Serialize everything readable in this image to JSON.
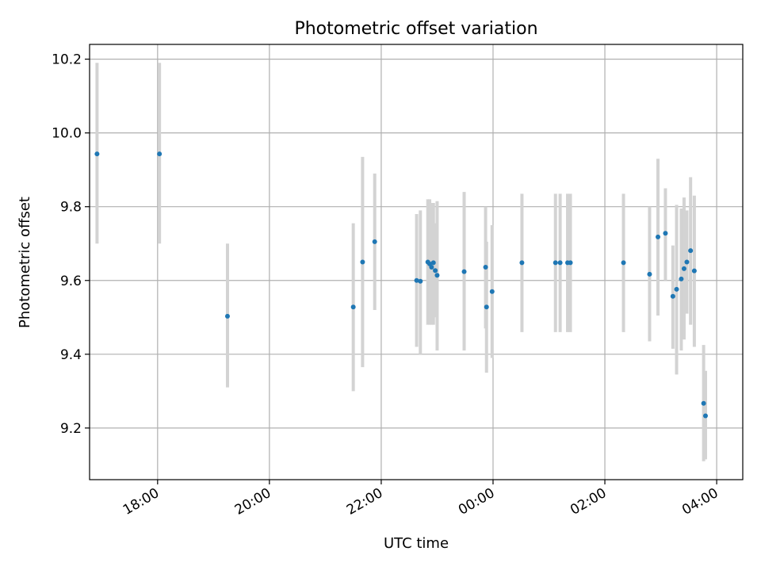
{
  "chart_data": {
    "type": "scatter",
    "title": "Photometric offset variation",
    "xlabel": "UTC time",
    "ylabel": "Photometric offset",
    "grid": true,
    "x_axis_type": "time",
    "x_ticks": [
      "18:00",
      "20:00",
      "22:00",
      "00:00",
      "02:00",
      "04:00"
    ],
    "y_ticks": [
      "9.2",
      "9.4",
      "9.6",
      "9.8",
      "10.0",
      "10.2"
    ],
    "xlim": [
      "16:47",
      "04:28"
    ],
    "ylim": [
      9.06,
      10.24
    ],
    "colors": {
      "points": "#1f77b4",
      "errorbars": "#d3d3d3",
      "grid": "#b0b0b0"
    },
    "series": [
      {
        "points": [
          {
            "x": "16:55",
            "y": 9.943,
            "ylo": 9.7,
            "yhi": 10.19
          },
          {
            "x": "18:02",
            "y": 9.943,
            "ylo": 9.7,
            "yhi": 10.19
          },
          {
            "x": "19:15",
            "y": 9.503,
            "ylo": 9.31,
            "yhi": 9.7
          },
          {
            "x": "21:30",
            "y": 9.528,
            "ylo": 9.3,
            "yhi": 9.755
          },
          {
            "x": "21:40",
            "y": 9.65,
            "ylo": 9.365,
            "yhi": 9.935
          },
          {
            "x": "21:53",
            "y": 9.705,
            "ylo": 9.52,
            "yhi": 9.89
          },
          {
            "x": "22:38",
            "y": 9.6,
            "ylo": 9.42,
            "yhi": 9.78
          },
          {
            "x": "22:42",
            "y": 9.598,
            "ylo": 9.4,
            "yhi": 9.79
          },
          {
            "x": "22:50",
            "y": 9.65,
            "ylo": 9.48,
            "yhi": 9.82
          },
          {
            "x": "22:52",
            "y": 9.645,
            "ylo": 9.48,
            "yhi": 9.82
          },
          {
            "x": "22:54",
            "y": 9.636,
            "ylo": 9.48,
            "yhi": 9.81
          },
          {
            "x": "22:56",
            "y": 9.648,
            "ylo": 9.48,
            "yhi": 9.81
          },
          {
            "x": "22:58",
            "y": 9.627,
            "ylo": 9.5,
            "yhi": 9.755
          },
          {
            "x": "23:00",
            "y": 9.614,
            "ylo": 9.41,
            "yhi": 9.815
          },
          {
            "x": "23:29",
            "y": 9.624,
            "ylo": 9.41,
            "yhi": 9.84
          },
          {
            "x": "23:52",
            "y": 9.636,
            "ylo": 9.47,
            "yhi": 9.8
          },
          {
            "x": "23:53",
            "y": 9.528,
            "ylo": 9.35,
            "yhi": 9.705
          },
          {
            "x": "23:59",
            "y": 9.57,
            "ylo": 9.39,
            "yhi": 9.75
          },
          {
            "x": "00:31",
            "y": 9.648,
            "ylo": 9.46,
            "yhi": 9.835
          },
          {
            "x": "01:07",
            "y": 9.648,
            "ylo": 9.46,
            "yhi": 9.835
          },
          {
            "x": "01:12",
            "y": 9.648,
            "ylo": 9.46,
            "yhi": 9.835
          },
          {
            "x": "01:20",
            "y": 9.648,
            "ylo": 9.46,
            "yhi": 9.835
          },
          {
            "x": "01:23",
            "y": 9.648,
            "ylo": 9.46,
            "yhi": 9.835
          },
          {
            "x": "02:20",
            "y": 9.648,
            "ylo": 9.46,
            "yhi": 9.835
          },
          {
            "x": "02:48",
            "y": 9.617,
            "ylo": 9.435,
            "yhi": 9.8
          },
          {
            "x": "02:57",
            "y": 9.718,
            "ylo": 9.505,
            "yhi": 9.93
          },
          {
            "x": "03:05",
            "y": 9.728,
            "ylo": 9.6,
            "yhi": 9.85
          },
          {
            "x": "03:13",
            "y": 9.557,
            "ylo": 9.415,
            "yhi": 9.695
          },
          {
            "x": "03:17",
            "y": 9.576,
            "ylo": 9.345,
            "yhi": 9.805
          },
          {
            "x": "03:22",
            "y": 9.604,
            "ylo": 9.41,
            "yhi": 9.795
          },
          {
            "x": "03:25",
            "y": 9.632,
            "ylo": 9.44,
            "yhi": 9.825
          },
          {
            "x": "03:28",
            "y": 9.65,
            "ylo": 9.51,
            "yhi": 9.79
          },
          {
            "x": "03:32",
            "y": 9.681,
            "ylo": 9.48,
            "yhi": 9.88
          },
          {
            "x": "03:36",
            "y": 9.626,
            "ylo": 9.42,
            "yhi": 9.83
          },
          {
            "x": "03:46",
            "y": 9.267,
            "ylo": 9.11,
            "yhi": 9.425
          },
          {
            "x": "03:48",
            "y": 9.233,
            "ylo": 9.115,
            "yhi": 9.355
          }
        ]
      }
    ]
  }
}
